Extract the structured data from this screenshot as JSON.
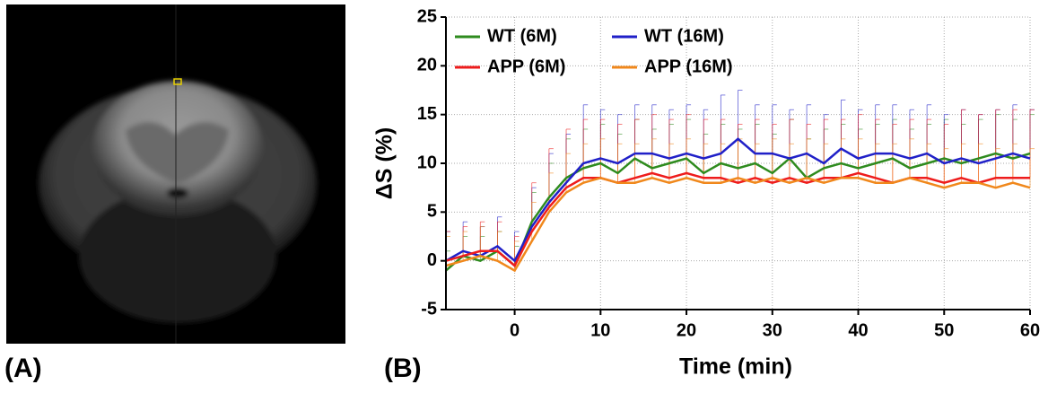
{
  "panel_labels": [
    "(A)",
    "(B)"
  ],
  "chart_data": {
    "type": "line",
    "x_label": "Time (min)",
    "y_label": "ΔS (%)",
    "x": [
      -8,
      -6,
      -4,
      -2,
      0,
      2,
      4,
      6,
      8,
      10,
      12,
      14,
      16,
      18,
      20,
      22,
      24,
      26,
      28,
      30,
      32,
      34,
      36,
      38,
      40,
      42,
      44,
      46,
      48,
      50,
      52,
      54,
      56,
      58,
      60
    ],
    "series": [
      {
        "name": "WT (6M)",
        "color": "#2e8b1e",
        "values": [
          -1,
          0.5,
          0,
          1,
          -0.5,
          4,
          6.5,
          8.5,
          9.5,
          10,
          9,
          10.5,
          9.5,
          10,
          10.5,
          9,
          10,
          9.5,
          10,
          9,
          10.5,
          8.5,
          9.5,
          10,
          9.5,
          10,
          10.5,
          9.5,
          10,
          10.5,
          10,
          10.5,
          11,
          10.5,
          11
        ],
        "errors": [
          2,
          2,
          2.5,
          2,
          2,
          3,
          3.5,
          4,
          4,
          4,
          4,
          4,
          4,
          4,
          4,
          4,
          4,
          4,
          4,
          4,
          4,
          4,
          4,
          4,
          4,
          4,
          4,
          4,
          4,
          4,
          4,
          4,
          4,
          4,
          4
        ]
      },
      {
        "name": "WT (16M)",
        "color": "#2020c8",
        "values": [
          0,
          1,
          0.5,
          1.5,
          0,
          3.5,
          6,
          8,
          10,
          10.5,
          10,
          11,
          11,
          10.5,
          11,
          10.5,
          11,
          12.5,
          11,
          11,
          10.5,
          11,
          10,
          11.5,
          10.5,
          11,
          11,
          10.5,
          11,
          10,
          10.5,
          10,
          10.5,
          11,
          10.5
        ],
        "errors": [
          3,
          3,
          3,
          3,
          3,
          4,
          5,
          5,
          6,
          5,
          5,
          5,
          5,
          5,
          5,
          5,
          6,
          5,
          5,
          5,
          5,
          5,
          5,
          5,
          5,
          5,
          5,
          5,
          5,
          5,
          5,
          5,
          5,
          5,
          5
        ]
      },
      {
        "name": "APP (6M)",
        "color": "#ee1c1c",
        "values": [
          0,
          0.5,
          1,
          1,
          -0.5,
          3,
          5.5,
          7.5,
          8.5,
          8.5,
          8,
          8.5,
          9,
          8.5,
          9,
          8.5,
          8.5,
          8,
          8.5,
          8,
          8.5,
          8,
          8.5,
          8.5,
          9,
          8.5,
          8,
          8.5,
          8.5,
          8,
          8.5,
          8,
          8.5,
          8.5,
          8.5
        ],
        "errors": [
          3,
          3,
          3,
          3,
          3,
          5,
          6,
          6,
          6,
          6,
          6,
          6,
          6,
          6,
          6,
          6,
          6,
          6,
          6,
          6,
          6,
          6,
          6,
          6,
          6,
          6,
          6,
          6,
          6,
          6,
          7,
          7,
          7,
          7,
          7
        ]
      },
      {
        "name": "APP (16M)",
        "color": "#f0881c",
        "values": [
          -0.5,
          0,
          0.5,
          0,
          -1,
          2,
          5,
          7,
          8,
          8.5,
          8,
          8,
          8.5,
          8,
          8.5,
          8,
          8,
          8.5,
          8,
          8.5,
          8,
          8.5,
          8,
          8.5,
          8.5,
          8,
          8,
          8.5,
          8,
          7.5,
          8,
          8,
          7.5,
          8,
          7.5
        ],
        "errors": [
          3,
          3,
          3,
          3,
          3,
          4,
          4,
          4,
          4,
          4,
          4,
          4,
          4,
          4,
          4,
          4,
          4,
          4,
          4,
          4,
          4,
          4,
          4,
          4,
          4,
          4,
          4,
          4,
          4,
          4,
          4,
          4,
          4,
          4,
          4
        ]
      }
    ],
    "xlim": [
      -8,
      60
    ],
    "xticks": [
      0,
      10,
      20,
      30,
      40,
      50,
      60
    ],
    "ylim": [
      -5,
      25
    ],
    "yticks": [
      -5,
      0,
      5,
      10,
      15,
      20,
      25
    ],
    "grid": true,
    "legend": "upper left"
  }
}
